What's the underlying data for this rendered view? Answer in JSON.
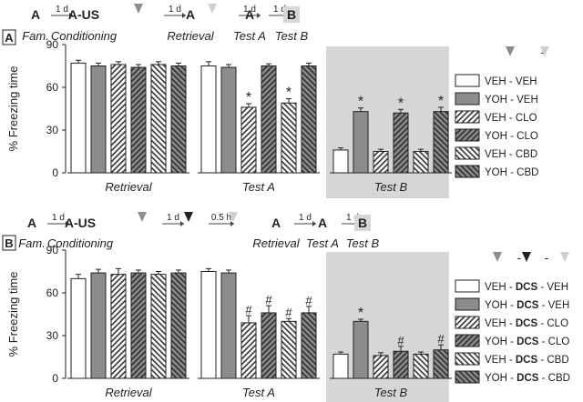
{
  "chart_data": [
    {
      "type": "bar",
      "panel_label": "A",
      "ylabel": "% Freezing time",
      "ylim": [
        0,
        90
      ],
      "yticks": [
        0,
        30,
        60,
        90
      ],
      "groups": [
        "Retrieval",
        "Test A",
        "Test B"
      ],
      "shaded_group": "Test B",
      "protocol": [
        {
          "label": "A",
          "sub": "Fam."
        },
        {
          "arrow_text": "1 d"
        },
        {
          "label": "A-US",
          "sub": "Conditioning"
        },
        {
          "marker": "grey-arrow"
        },
        {
          "arrow_text": "1 d"
        },
        {
          "label": "A",
          "sub": "Retrieval"
        },
        {
          "marker": "lightgrey-arrow"
        },
        {
          "arrow_text": "1 d"
        },
        {
          "label": "A",
          "sub": "Test A"
        },
        {
          "arrow_text": "1 d"
        },
        {
          "label": "B",
          "sub": "Test B",
          "boxed": true
        }
      ],
      "legend_header": [
        "grey-arrow",
        "-",
        "lightgrey-arrow"
      ],
      "series": [
        {
          "name": "VEH - VEH",
          "pattern": "white",
          "values": [
            77,
            75,
            16
          ],
          "errors": [
            2,
            3,
            1.5
          ],
          "marks": [
            "",
            "",
            ""
          ]
        },
        {
          "name": "YOH - VEH",
          "pattern": "grey",
          "values": [
            75,
            74,
            43
          ],
          "errors": [
            2,
            2,
            2.5
          ],
          "marks": [
            "",
            "",
            "*"
          ]
        },
        {
          "name": "VEH - CLO",
          "pattern": "hatch-left",
          "values": [
            76,
            46,
            15
          ],
          "errors": [
            2,
            2.5,
            1.5
          ],
          "marks": [
            "",
            "*",
            ""
          ]
        },
        {
          "name": "YOH - CLO",
          "pattern": "hatch-left-dark",
          "values": [
            74,
            75,
            42
          ],
          "errors": [
            2,
            1.5,
            2.5
          ],
          "marks": [
            "",
            "",
            "*"
          ]
        },
        {
          "name": "VEH - CBD",
          "pattern": "hatch-right",
          "values": [
            76,
            49,
            15
          ],
          "errors": [
            2,
            3,
            1.5
          ],
          "marks": [
            "",
            "*",
            ""
          ]
        },
        {
          "name": "YOH - CBD",
          "pattern": "hatch-right-dark",
          "values": [
            75,
            75,
            43
          ],
          "errors": [
            2,
            2,
            3
          ],
          "marks": [
            "",
            "",
            "*"
          ]
        }
      ]
    },
    {
      "type": "bar",
      "panel_label": "B",
      "ylabel": "% Freezing time",
      "ylim": [
        0,
        90
      ],
      "yticks": [
        0,
        30,
        60,
        90
      ],
      "groups": [
        "Retrieval",
        "Test A",
        "Test B"
      ],
      "shaded_group": "Test B",
      "protocol": [
        {
          "label": "A",
          "sub": "Fam."
        },
        {
          "arrow_text": "1 d"
        },
        {
          "label": "A-US",
          "sub": "Conditioning"
        },
        {
          "marker": "grey-arrow"
        },
        {
          "arrow_text": "1 d"
        },
        {
          "marker": "black-arrow"
        },
        {
          "arrow_text": "0.5 h"
        },
        {
          "marker": "lightgrey-arrow"
        },
        {
          "label": "A",
          "sub": "Retrieval"
        },
        {
          "arrow_text": "1 d"
        },
        {
          "label": "A",
          "sub": "Test A"
        },
        {
          "arrow_text": "1 d"
        },
        {
          "label": "B",
          "sub": "Test B",
          "boxed": true
        }
      ],
      "legend_header": [
        "grey-arrow",
        "-",
        "black-arrow",
        "-",
        "lightgrey-arrow"
      ],
      "series": [
        {
          "name": "VEH - DCS - VEH",
          "name_parts": [
            "VEH - ",
            "DCS",
            " - VEH"
          ],
          "pattern": "white",
          "values": [
            70,
            75,
            17
          ],
          "errors": [
            3,
            2,
            1.5
          ],
          "marks": [
            "",
            "",
            ""
          ]
        },
        {
          "name": "YOH - DCS - VEH",
          "name_parts": [
            "YOH - ",
            "DCS",
            " - VEH"
          ],
          "pattern": "grey",
          "values": [
            74,
            74,
            40
          ],
          "errors": [
            2.5,
            2,
            1.5
          ],
          "marks": [
            "",
            "",
            "*"
          ]
        },
        {
          "name": "VEH - DCS - CLO",
          "name_parts": [
            "VEH - ",
            "DCS",
            " - CLO"
          ],
          "pattern": "hatch-left",
          "values": [
            73,
            39,
            16
          ],
          "errors": [
            4,
            5,
            2
          ],
          "marks": [
            "",
            "#",
            ""
          ]
        },
        {
          "name": "YOH - DCS - CLO",
          "name_parts": [
            "YOH - ",
            "DCS",
            " - CLO"
          ],
          "pattern": "hatch-left-dark",
          "values": [
            74,
            46,
            19
          ],
          "errors": [
            2,
            5,
            3.5
          ],
          "marks": [
            "",
            "#",
            "#"
          ]
        },
        {
          "name": "VEH - DCS - CBD",
          "name_parts": [
            "VEH - ",
            "DCS",
            " - CBD"
          ],
          "pattern": "hatch-right",
          "values": [
            73,
            40,
            17
          ],
          "errors": [
            2,
            2,
            1.5
          ],
          "marks": [
            "",
            "#",
            ""
          ]
        },
        {
          "name": "YOH - DCS - CBD",
          "name_parts": [
            "YOH - ",
            "DCS",
            " - CBD"
          ],
          "pattern": "hatch-right-dark",
          "values": [
            74,
            46,
            20
          ],
          "errors": [
            2,
            4.5,
            3.5
          ],
          "marks": [
            "",
            "#",
            "#"
          ]
        }
      ]
    }
  ],
  "colors": {
    "grey_bar": "#8c8c8c",
    "dark_hatch": "#555555",
    "shade": "#d6d6d6",
    "grey_arrow": "#8e8e8e",
    "lightgrey_arrow": "#cfcfcf",
    "black_arrow": "#222222"
  }
}
